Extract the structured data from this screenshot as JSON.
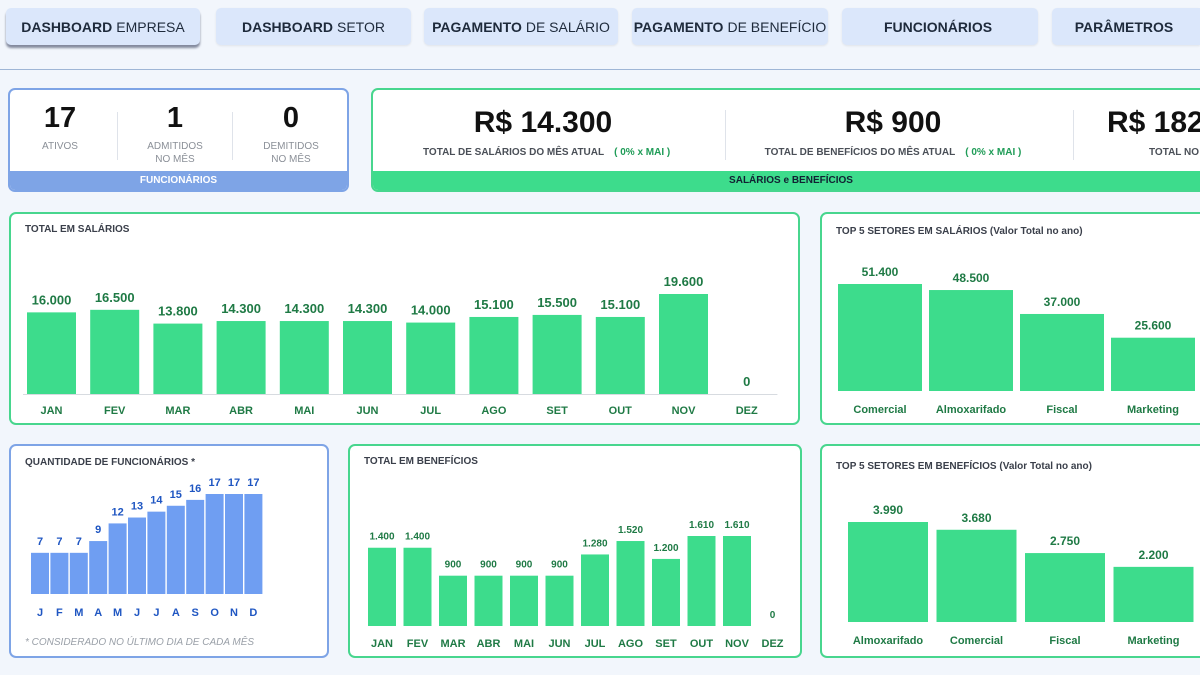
{
  "nav": {
    "tabs": [
      {
        "bold": "DASHBOARD",
        "rest": "EMPRESA"
      },
      {
        "bold": "DASHBOARD",
        "rest": "SETOR"
      },
      {
        "bold": "PAGAMENTO",
        "rest": "DE SALÁRIO"
      },
      {
        "bold": "PAGAMENTO",
        "rest": "DE BENEFÍCIO"
      },
      {
        "bold": "FUNCIONÁRIOS",
        "rest": ""
      },
      {
        "bold": "PARÂMETROS",
        "rest": ""
      }
    ]
  },
  "employees": {
    "stats": [
      {
        "value": "17",
        "label1": "ATIVOS",
        "label2": ""
      },
      {
        "value": "1",
        "label1": "ADMITIDOS",
        "label2": "NO MÊS"
      },
      {
        "value": "0",
        "label1": "DEMITIDOS",
        "label2": "NO MÊS"
      }
    ],
    "footer": "FUNCIONÁRIOS"
  },
  "payroll": {
    "items": [
      {
        "value": "R$ 14.300",
        "label": "TOTAL DE SALÁRIOS DO MÊS ATUAL",
        "compare": "( 0% x MAI )"
      },
      {
        "value": "R$ 900",
        "label": "TOTAL DE BENEFÍCIOS DO MÊS ATUAL",
        "compare": "( 0% x MAI )"
      },
      {
        "value": "R$ 182",
        "label": "TOTAL NO",
        "compare": ""
      }
    ],
    "footer": "SALÁRIOS e BENEFÍCIOS"
  },
  "colors": {
    "green_bar": "#3ddc8c",
    "green_label": "#1f7a45",
    "blue_bar": "#6f9ef2",
    "blue_label": "#1f56c2"
  },
  "chart_data": [
    {
      "id": "salaries",
      "type": "bar",
      "title": "TOTAL EM SALÁRIOS",
      "categories": [
        "JAN",
        "FEV",
        "MAR",
        "ABR",
        "MAI",
        "JUN",
        "JUL",
        "AGO",
        "SET",
        "OUT",
        "NOV",
        "DEZ"
      ],
      "values": [
        16000,
        16500,
        13800,
        14300,
        14300,
        14300,
        14000,
        15100,
        15500,
        15100,
        19600,
        0
      ],
      "labels": [
        "16.000",
        "16.500",
        "13.800",
        "14.300",
        "14.300",
        "14.300",
        "14.000",
        "15.100",
        "15.500",
        "15.100",
        "19.600",
        "0"
      ],
      "ylim": [
        0,
        19600
      ]
    },
    {
      "id": "top_sal",
      "type": "bar",
      "title": "TOP 5 SETORES EM SALÁRIOS (Valor Total no ano)",
      "categories": [
        "Comercial",
        "Almoxarifado",
        "Fiscal",
        "Marketing"
      ],
      "values": [
        51400,
        48500,
        37000,
        25600
      ],
      "labels": [
        "51.400",
        "48.500",
        "37.000",
        "25.600"
      ],
      "ylim": [
        0,
        51400
      ]
    },
    {
      "id": "headcount",
      "type": "bar",
      "title": "QUANTIDADE DE FUNCIONÁRIOS *",
      "categories": [
        "J",
        "F",
        "M",
        "A",
        "M",
        "J",
        "J",
        "A",
        "S",
        "O",
        "N",
        "D"
      ],
      "values": [
        7,
        7,
        7,
        9,
        12,
        13,
        14,
        15,
        16,
        17,
        17,
        17
      ],
      "labels": [
        "7",
        "7",
        "7",
        "9",
        "12",
        "13",
        "14",
        "15",
        "16",
        "17",
        "17",
        "17"
      ],
      "ylim": [
        0,
        17
      ],
      "note": "* CONSIDERADO NO  ÚLTIMO DIA DE CADA MÊS"
    },
    {
      "id": "benefits",
      "type": "bar",
      "title": "TOTAL EM BENEFÍCIOS",
      "categories": [
        "JAN",
        "FEV",
        "MAR",
        "ABR",
        "MAI",
        "JUN",
        "JUL",
        "AGO",
        "SET",
        "OUT",
        "NOV",
        "DEZ"
      ],
      "values": [
        1400,
        1400,
        900,
        900,
        900,
        900,
        1280,
        1520,
        1200,
        1610,
        1610,
        0
      ],
      "labels": [
        "1.400",
        "1.400",
        "900",
        "900",
        "900",
        "900",
        "1.280",
        "1.520",
        "1.200",
        "1.610",
        "1.610",
        "0"
      ],
      "ylim": [
        0,
        1610
      ]
    },
    {
      "id": "top_ben",
      "type": "bar",
      "title": "TOP 5 SETORES  EM BENEFÍCIOS (Valor Total no ano)",
      "categories": [
        "Almoxarifado",
        "Comercial",
        "Fiscal",
        "Marketing"
      ],
      "values": [
        3990,
        3680,
        2750,
        2200
      ],
      "labels": [
        "3.990",
        "3.680",
        "2.750",
        "2.200"
      ],
      "ylim": [
        0,
        3990
      ]
    }
  ]
}
